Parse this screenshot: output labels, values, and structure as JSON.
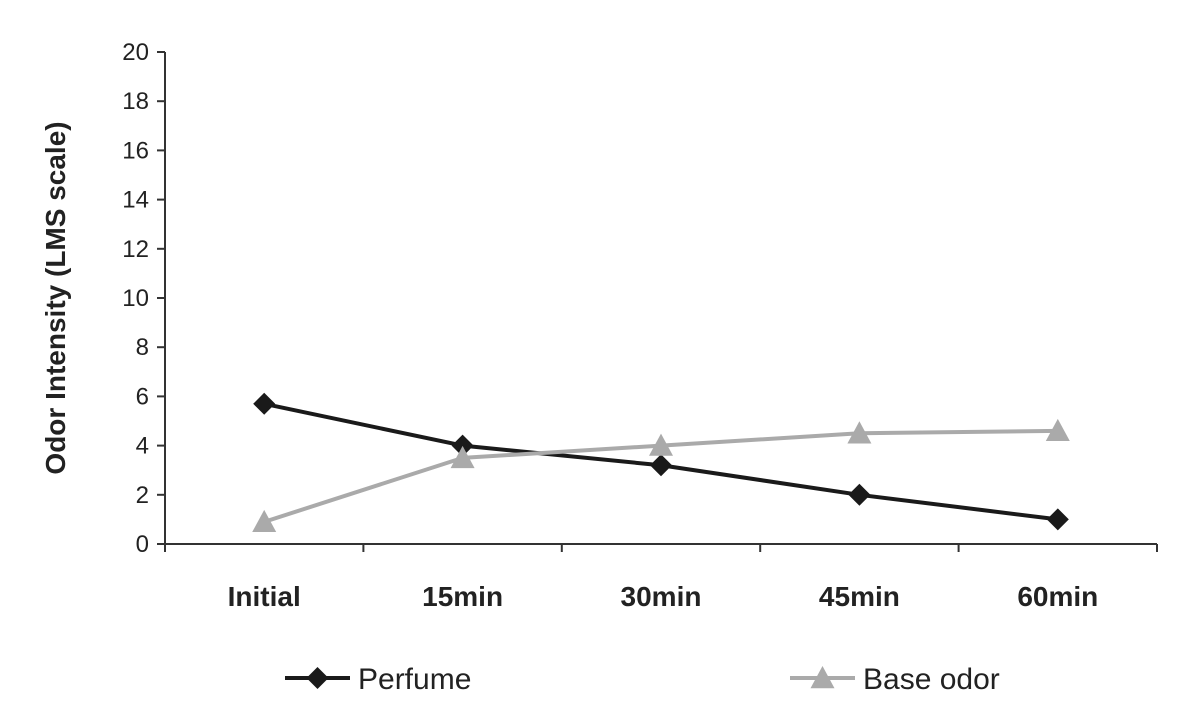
{
  "chart_data": {
    "type": "line",
    "title": "",
    "xlabel": "",
    "ylabel": "Odor Intensity (LMS scale)",
    "ylim": [
      0,
      20
    ],
    "yticks": [
      0,
      2,
      4,
      6,
      8,
      10,
      12,
      14,
      16,
      18,
      20
    ],
    "categories": [
      "Initial",
      "15min",
      "30min",
      "45min",
      "60min"
    ],
    "grid": false,
    "legend_position": "bottom",
    "series": [
      {
        "name": "Perfume",
        "values": [
          5.7,
          4.0,
          3.2,
          2.0,
          1.0
        ],
        "color": "#1a1a1a",
        "marker": "diamond"
      },
      {
        "name": "Base odor",
        "values": [
          0.9,
          3.5,
          4.0,
          4.5,
          4.6
        ],
        "color": "#aaaaaa",
        "marker": "triangle"
      }
    ]
  }
}
